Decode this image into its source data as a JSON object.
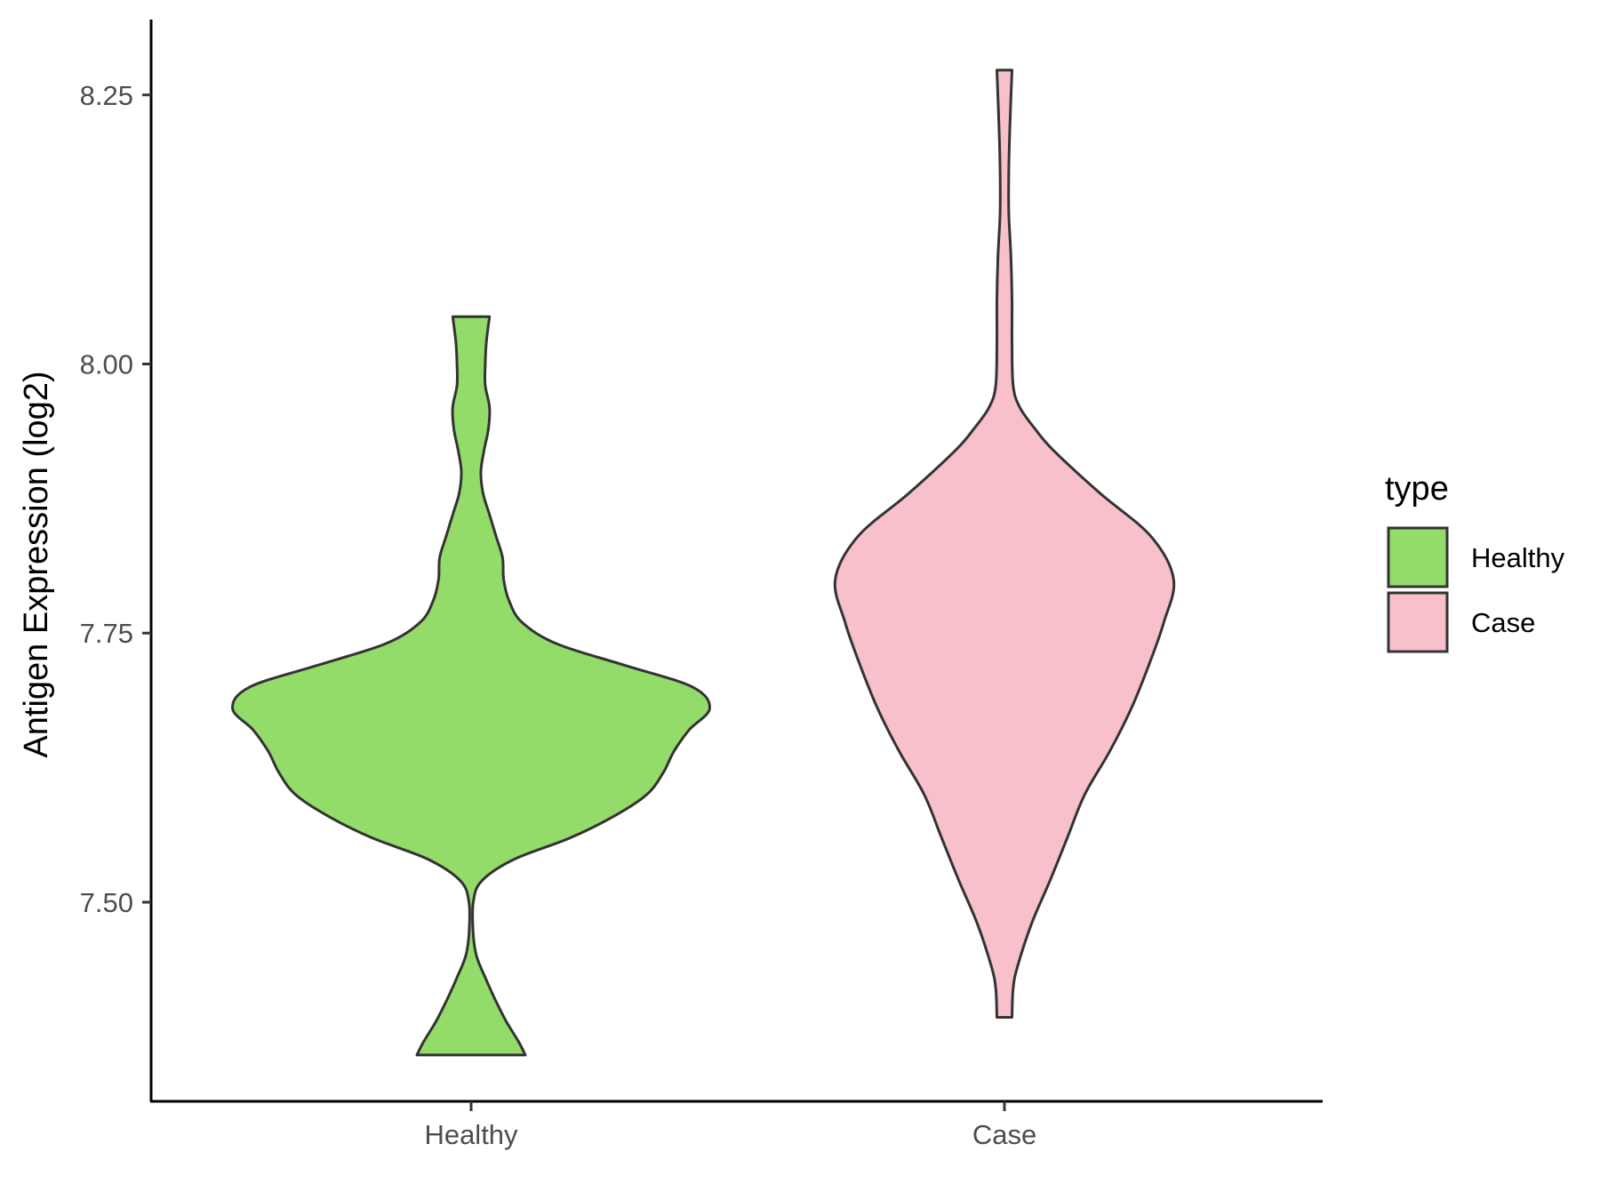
{
  "chart_data": {
    "type": "violin",
    "categories": [
      "Healthy",
      "Case"
    ],
    "ylabel": "Antigen Expression (log2)",
    "xlabel": "",
    "ylim": [
      7.315,
      8.32
    ],
    "yticks": [
      "7.50",
      "7.75",
      "8.00",
      "8.25"
    ],
    "ytick_values": [
      7.5,
      7.75,
      8.0,
      8.25
    ],
    "grid": false,
    "legend": {
      "title": "type",
      "position": "right",
      "entries": [
        "Healthy",
        "Case"
      ]
    },
    "series": [
      {
        "name": "Healthy",
        "color": "#93dc6a",
        "min": 7.358,
        "max": 8.044,
        "profile": [
          [
            7.358,
            0.5
          ],
          [
            7.37,
            0.44
          ],
          [
            7.39,
            0.32
          ],
          [
            7.41,
            0.22
          ],
          [
            7.43,
            0.13
          ],
          [
            7.45,
            0.05
          ],
          [
            7.47,
            0.02
          ],
          [
            7.5,
            0.02
          ],
          [
            7.52,
            0.1
          ],
          [
            7.54,
            0.4
          ],
          [
            7.56,
            0.92
          ],
          [
            7.58,
            1.32
          ],
          [
            7.6,
            1.62
          ],
          [
            7.62,
            1.77
          ],
          [
            7.64,
            1.87
          ],
          [
            7.66,
            2.01
          ],
          [
            7.68,
            2.2
          ],
          [
            7.7,
            2.04
          ],
          [
            7.72,
            1.42
          ],
          [
            7.74,
            0.79
          ],
          [
            7.76,
            0.47
          ],
          [
            7.78,
            0.35
          ],
          [
            7.8,
            0.3
          ],
          [
            7.82,
            0.29
          ],
          [
            7.84,
            0.23
          ],
          [
            7.86,
            0.17
          ],
          [
            7.88,
            0.11
          ],
          [
            7.9,
            0.09
          ],
          [
            7.92,
            0.12
          ],
          [
            7.94,
            0.16
          ],
          [
            7.96,
            0.17
          ],
          [
            7.98,
            0.13
          ],
          [
            8.0,
            0.13
          ],
          [
            8.02,
            0.14
          ],
          [
            8.044,
            0.17
          ]
        ]
      },
      {
        "name": "Case",
        "color": "#f7c0cb",
        "min": 7.393,
        "max": 8.273,
        "profile": [
          [
            7.393,
            0.07
          ],
          [
            7.42,
            0.08
          ],
          [
            7.44,
            0.12
          ],
          [
            7.48,
            0.25
          ],
          [
            7.52,
            0.42
          ],
          [
            7.56,
            0.58
          ],
          [
            7.6,
            0.74
          ],
          [
            7.64,
            0.97
          ],
          [
            7.68,
            1.17
          ],
          [
            7.72,
            1.33
          ],
          [
            7.76,
            1.47
          ],
          [
            7.8,
            1.56
          ],
          [
            7.84,
            1.35
          ],
          [
            7.88,
            0.88
          ],
          [
            7.92,
            0.45
          ],
          [
            7.94,
            0.28
          ],
          [
            7.96,
            0.14
          ],
          [
            7.98,
            0.08
          ],
          [
            8.02,
            0.07
          ],
          [
            8.06,
            0.07
          ],
          [
            8.1,
            0.06
          ],
          [
            8.14,
            0.04
          ],
          [
            8.18,
            0.04
          ],
          [
            8.22,
            0.05
          ],
          [
            8.273,
            0.07
          ]
        ]
      }
    ]
  }
}
